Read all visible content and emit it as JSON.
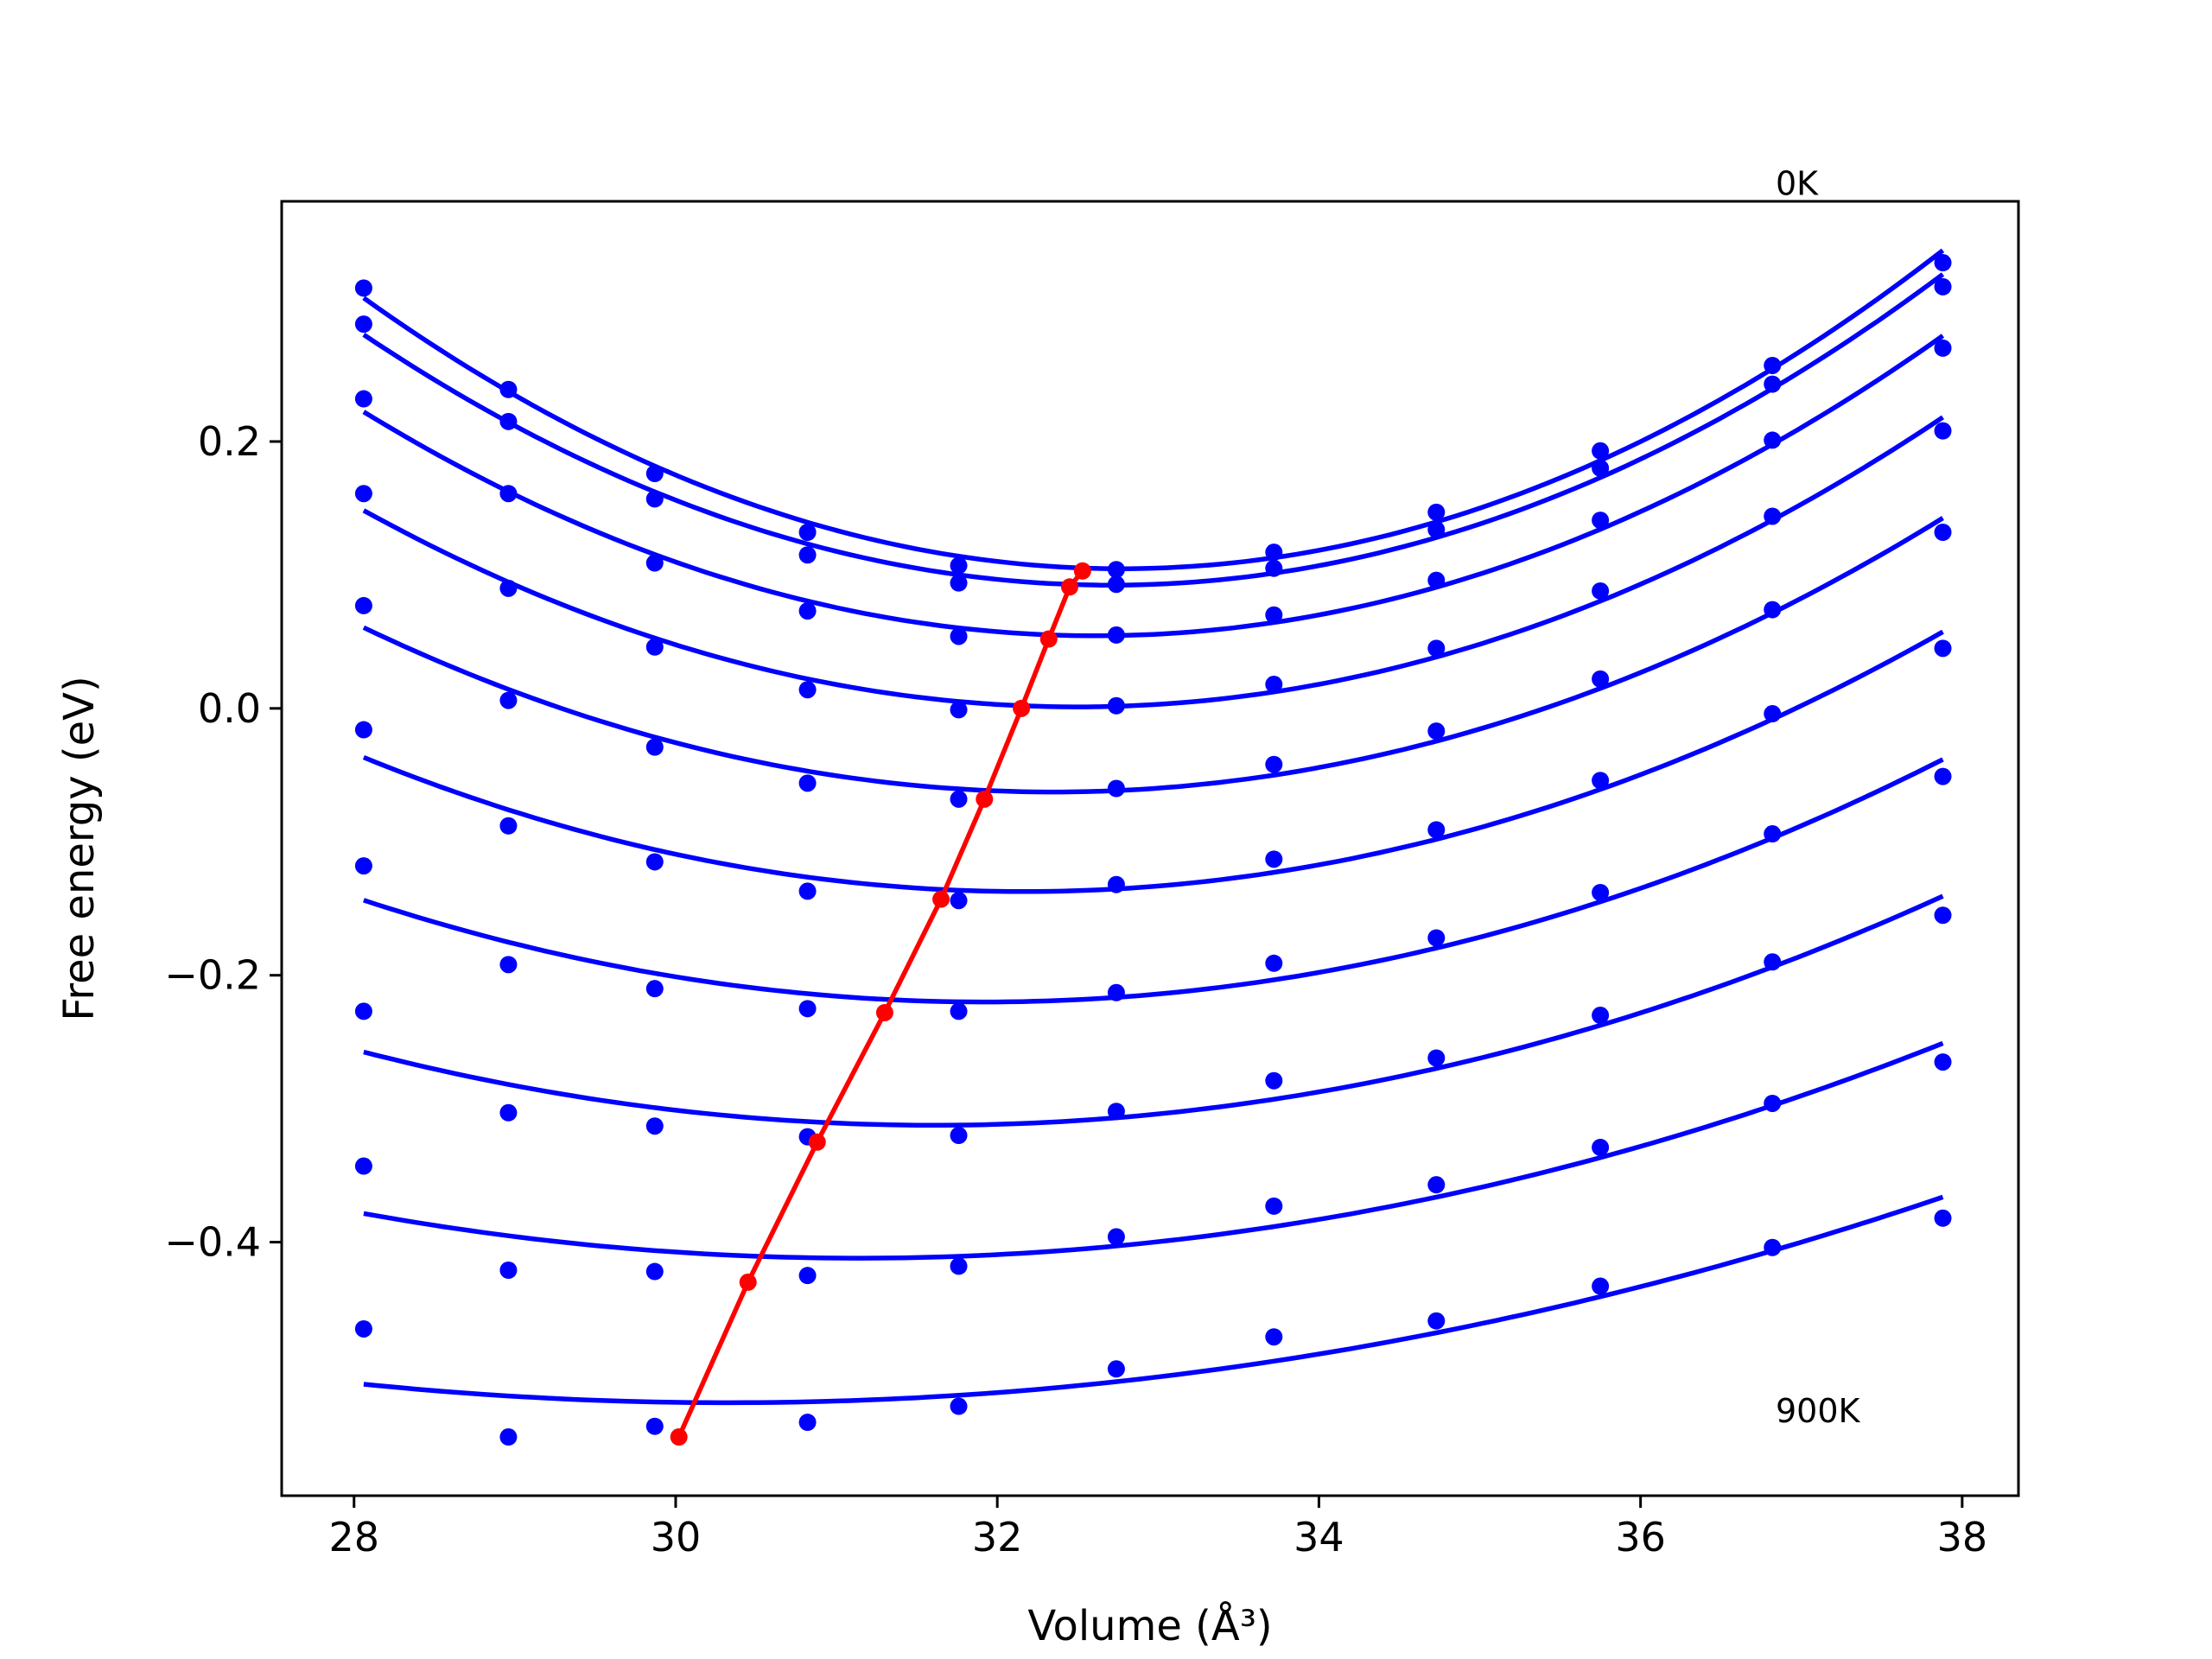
{
  "chart_data": {
    "type": "line",
    "xlabel": "Volume (Å³)",
    "ylabel": "Free energy (eV)",
    "xlim": [
      27.55,
      38.35
    ],
    "ylim": [
      -0.59,
      0.38
    ],
    "x_ticks": [
      {
        "value": 28,
        "label": "28"
      },
      {
        "value": 30,
        "label": "30"
      },
      {
        "value": 32,
        "label": "32"
      },
      {
        "value": 34,
        "label": "34"
      },
      {
        "value": 36,
        "label": "36"
      },
      {
        "value": 38,
        "label": "38"
      }
    ],
    "y_ticks": [
      {
        "value": 0.2,
        "label": "0.2"
      },
      {
        "value": 0.0,
        "label": "0.0"
      },
      {
        "value": -0.2,
        "label": "−0.2"
      },
      {
        "value": -0.4,
        "label": "−0.4"
      }
    ],
    "annotations": [
      {
        "text": "0K",
        "x": 36.84,
        "y": 0.385
      },
      {
        "text": "900K",
        "x": 36.84,
        "y": -0.535
      }
    ],
    "volumes": [
      28.06,
      28.96,
      29.87,
      30.82,
      31.76,
      32.74,
      33.72,
      34.73,
      35.75,
      36.82,
      37.88
    ],
    "series": [
      {
        "points": [
          0.315,
          0.239,
          0.176,
          0.132,
          0.107,
          0.104,
          0.117,
          0.147,
          0.193,
          0.257,
          0.334
        ]
      },
      {
        "points": [
          0.288,
          0.215,
          0.157,
          0.115,
          0.094,
          0.093,
          0.105,
          0.134,
          0.18,
          0.243,
          0.316
        ]
      },
      {
        "points": [
          0.232,
          0.161,
          0.109,
          0.073,
          0.054,
          0.055,
          0.07,
          0.096,
          0.141,
          0.201,
          0.27
        ]
      },
      {
        "points": [
          0.161,
          0.09,
          0.046,
          0.014,
          -0.001,
          0.002,
          0.018,
          0.045,
          0.088,
          0.144,
          0.208
        ]
      },
      {
        "points": [
          0.077,
          0.006,
          -0.029,
          -0.056,
          -0.068,
          -0.06,
          -0.042,
          -0.017,
          0.022,
          0.074,
          0.132
        ]
      },
      {
        "points": [
          -0.016,
          -0.088,
          -0.115,
          -0.137,
          -0.144,
          -0.132,
          -0.113,
          -0.091,
          -0.054,
          -0.004,
          0.045
        ]
      },
      {
        "points": [
          -0.118,
          -0.192,
          -0.21,
          -0.225,
          -0.227,
          -0.213,
          -0.191,
          -0.172,
          -0.138,
          -0.094,
          -0.051
        ]
      },
      {
        "points": [
          -0.227,
          -0.303,
          -0.313,
          -0.321,
          -0.32,
          -0.302,
          -0.279,
          -0.262,
          -0.23,
          -0.19,
          -0.155
        ]
      },
      {
        "points": [
          -0.343,
          -0.421,
          -0.422,
          -0.425,
          -0.418,
          -0.396,
          -0.373,
          -0.357,
          -0.329,
          -0.296,
          -0.265
        ]
      },
      {
        "points": [
          -0.465,
          -0.546,
          -0.538,
          -0.535,
          -0.523,
          -0.495,
          -0.471,
          -0.459,
          -0.433,
          -0.404,
          -0.382
        ]
      }
    ],
    "minima": [
      {
        "x": 32.53,
        "y": 0.103
      },
      {
        "x": 32.45,
        "y": 0.091
      },
      {
        "x": 32.32,
        "y": 0.052
      },
      {
        "x": 32.15,
        "y": 0.0
      },
      {
        "x": 31.92,
        "y": -0.068
      },
      {
        "x": 31.65,
        "y": -0.143
      },
      {
        "x": 31.3,
        "y": -0.228
      },
      {
        "x": 30.88,
        "y": -0.325
      },
      {
        "x": 30.45,
        "y": -0.43
      },
      {
        "x": 30.02,
        "y": -0.546
      }
    ],
    "colors": {
      "series": "#0000ff",
      "minima": "#ff0000",
      "axes": "#000000"
    }
  }
}
